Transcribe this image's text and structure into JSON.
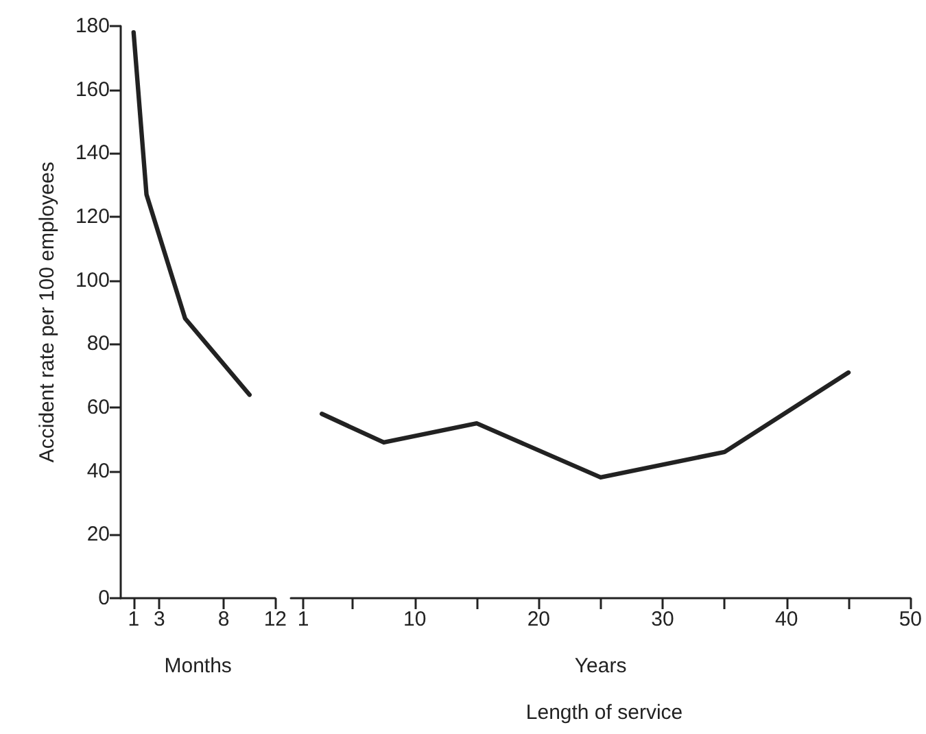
{
  "chart_data": [
    {
      "type": "line",
      "ylabel": "Accident rate per 100 employees",
      "xlabel": "Months",
      "x": [
        1,
        2,
        5,
        10
      ],
      "series": [
        {
          "color": "#222222",
          "values": [
            178,
            127,
            88,
            64
          ]
        }
      ],
      "xlim": [
        0,
        12
      ],
      "xticks": [
        1,
        3,
        8,
        12
      ],
      "ylim": [
        0,
        180
      ],
      "yticks": [
        0,
        20,
        40,
        60,
        80,
        100,
        120,
        140,
        160,
        180
      ],
      "grid": false,
      "marker": "none",
      "line_style": "solid"
    },
    {
      "type": "line",
      "xlabel": "Years",
      "annotations": [
        "Length of service"
      ],
      "x": [
        2.5,
        7.5,
        15,
        25,
        35,
        45
      ],
      "series": [
        {
          "color": "#222222",
          "values": [
            58,
            49,
            55,
            38,
            46,
            71
          ]
        }
      ],
      "xlim": [
        0,
        50
      ],
      "xticks": [
        1,
        {
          "value": 5,
          "label": null
        },
        10,
        {
          "value": 15,
          "label": null
        },
        20,
        {
          "value": 25,
          "label": null
        },
        30,
        {
          "value": 35,
          "label": null
        },
        40,
        {
          "value": 45,
          "label": null
        },
        50
      ],
      "ylim": [
        0,
        180
      ],
      "tick_labels": "x",
      "grid": false,
      "marker": "none",
      "line_style": "solid"
    }
  ]
}
